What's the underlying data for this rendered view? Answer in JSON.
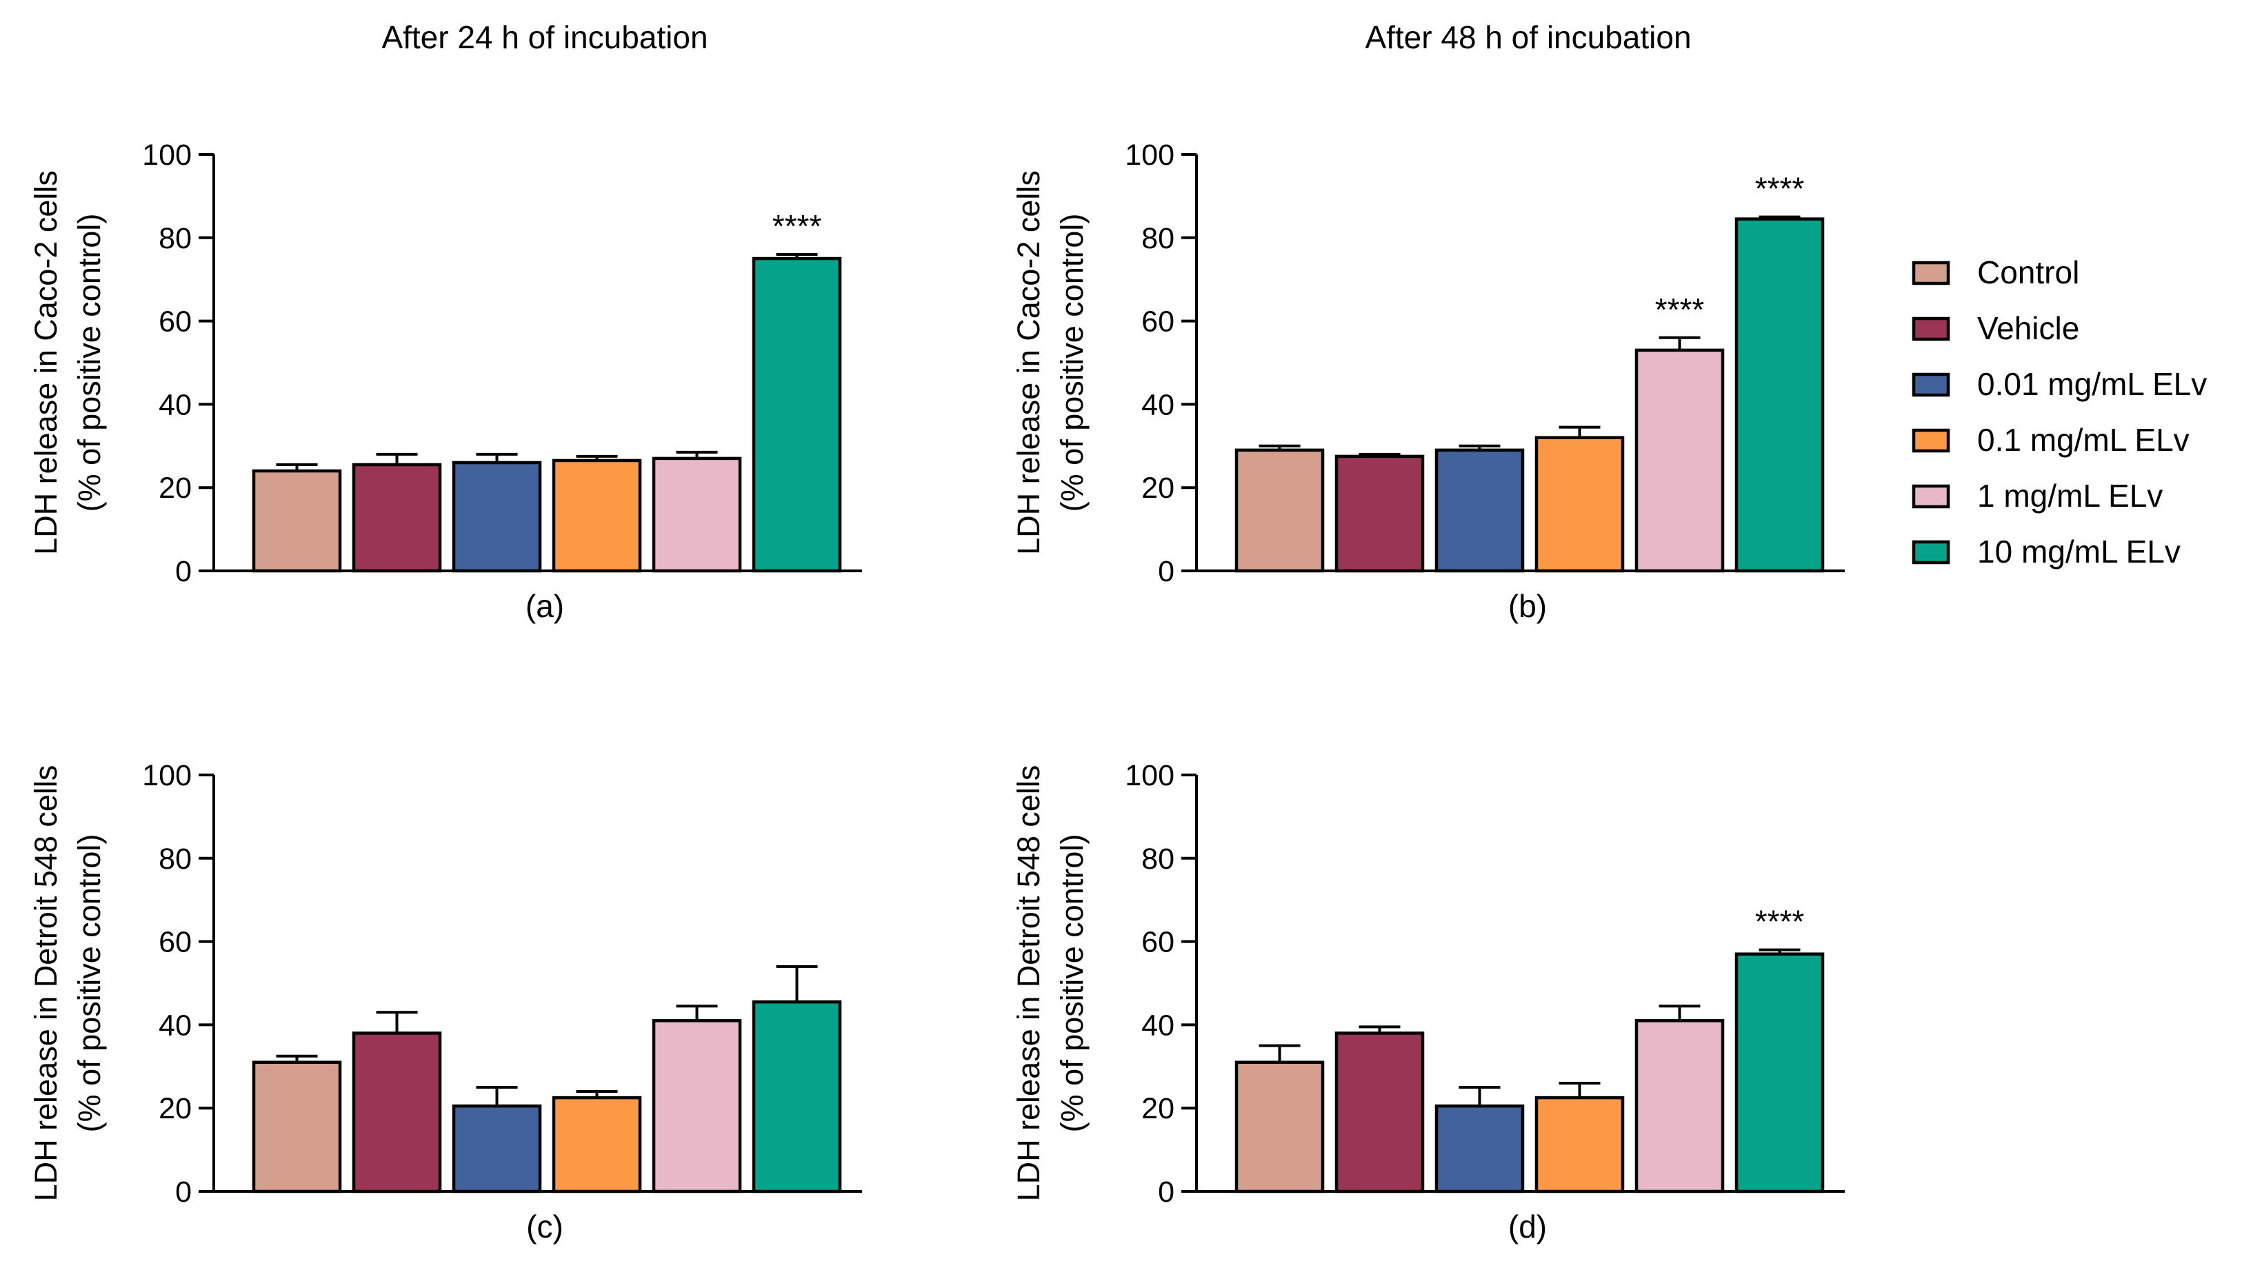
{
  "column_titles": [
    "After 24 h of incubation",
    "After 48 h of incubation"
  ],
  "legend": {
    "entries": [
      {
        "label": "Control",
        "color": "#D4A08D"
      },
      {
        "label": "Vehicle",
        "color": "#9B3556"
      },
      {
        "label": "0.01 mg/mL ELv",
        "color": "#41629B"
      },
      {
        "label": "0.1 mg/mL ELv",
        "color": "#FD9845"
      },
      {
        "label": "1 mg/mL ELv",
        "color": "#E9B8C8"
      },
      {
        "label": "10 mg/mL ELv",
        "color": "#05A38A"
      }
    ]
  },
  "chart_data": [
    {
      "type": "bar",
      "panel_label": "(a)",
      "ylabel_line1": "LDH release in Caco-2 cells",
      "ylabel_line2": "(% of positive control)",
      "ylim": [
        0,
        100
      ],
      "yticks": [
        0,
        20,
        40,
        60,
        80,
        100
      ],
      "categories": [
        "Control",
        "Vehicle",
        "0.01 mg/mL ELv",
        "0.1 mg/mL ELv",
        "1 mg/mL ELv",
        "10 mg/mL ELv"
      ],
      "values": [
        24,
        25.5,
        26,
        26.5,
        27,
        75
      ],
      "errors": [
        1.5,
        2.5,
        2,
        1,
        1.5,
        1
      ],
      "significance": [
        "",
        "",
        "",
        "",
        "",
        "****"
      ]
    },
    {
      "type": "bar",
      "panel_label": "(b)",
      "ylabel_line1": "LDH release in Caco-2 cells",
      "ylabel_line2": "(% of positive control)",
      "ylim": [
        0,
        100
      ],
      "yticks": [
        0,
        20,
        40,
        60,
        80,
        100
      ],
      "categories": [
        "Control",
        "Vehicle",
        "0.01 mg/mL ELv",
        "0.1 mg/mL ELv",
        "1 mg/mL ELv",
        "10 mg/mL ELv"
      ],
      "values": [
        29,
        27.5,
        29,
        32,
        53,
        84.5
      ],
      "errors": [
        1,
        0.5,
        1,
        2.5,
        3,
        0.5
      ],
      "significance": [
        "",
        "",
        "",
        "",
        "****",
        "****"
      ]
    },
    {
      "type": "bar",
      "panel_label": "(c)",
      "ylabel_line1": "LDH release in Detroit 548 cells",
      "ylabel_line2": "(% of positive control)",
      "ylim": [
        0,
        100
      ],
      "yticks": [
        0,
        20,
        40,
        60,
        80,
        100
      ],
      "categories": [
        "Control",
        "Vehicle",
        "0.01 mg/mL ELv",
        "0.1 mg/mL ELv",
        "1 mg/mL ELv",
        "10 mg/mL ELv"
      ],
      "values": [
        31,
        38,
        20.5,
        22.5,
        41,
        45.5
      ],
      "errors": [
        1.5,
        5,
        4.5,
        1.5,
        3.5,
        8.5
      ],
      "significance": [
        "",
        "",
        "",
        "",
        "",
        ""
      ]
    },
    {
      "type": "bar",
      "panel_label": "(d)",
      "ylabel_line1": "LDH release in Detroit 548 cells",
      "ylabel_line2": "(% of positive control)",
      "ylim": [
        0,
        100
      ],
      "yticks": [
        0,
        20,
        40,
        60,
        80,
        100
      ],
      "categories": [
        "Control",
        "Vehicle",
        "0.01 mg/mL ELv",
        "0.1 mg/mL ELv",
        "1 mg/mL ELv",
        "10 mg/mL ELv"
      ],
      "values": [
        31,
        38,
        20.5,
        22.5,
        41,
        57
      ],
      "errors": [
        4,
        1.5,
        4.5,
        3.5,
        3.5,
        1
      ],
      "significance": [
        "",
        "",
        "",
        "",
        "",
        "****"
      ]
    }
  ]
}
